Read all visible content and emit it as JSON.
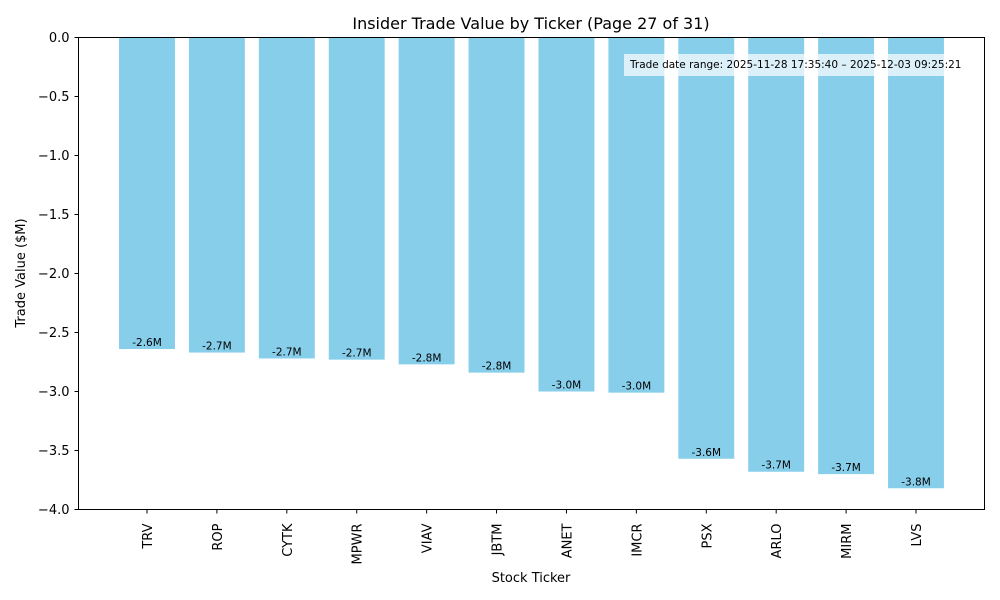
{
  "chart_data": {
    "type": "bar",
    "title": "Insider Trade Value by Ticker (Page 27 of 31)",
    "xlabel": "Stock Ticker",
    "ylabel": "Trade Value ($M)",
    "ylim": [
      -4.0,
      0.0
    ],
    "yticks": [
      0.0,
      -0.5,
      -1.0,
      -1.5,
      -2.0,
      -2.5,
      -3.0,
      -3.5,
      -4.0
    ],
    "ytick_labels": [
      "0.0",
      "−0.5",
      "−1.0",
      "−1.5",
      "−2.0",
      "−2.5",
      "−3.0",
      "−3.5",
      "−4.0"
    ],
    "grid": false,
    "categories": [
      "TRV",
      "ROP",
      "CYTK",
      "MPWR",
      "VIAV",
      "JBTM",
      "ANET",
      "IMCR",
      "PSX",
      "ARLO",
      "MIRM",
      "LVS"
    ],
    "values": [
      -2.64,
      -2.67,
      -2.72,
      -2.73,
      -2.77,
      -2.84,
      -3.0,
      -3.01,
      -3.57,
      -3.68,
      -3.7,
      -3.82
    ],
    "data_labels": [
      "-2.6M",
      "-2.7M",
      "-2.7M",
      "-2.7M",
      "-2.8M",
      "-2.8M",
      "-3.0M",
      "-3.0M",
      "-3.6M",
      "-3.7M",
      "-3.7M",
      "-3.8M"
    ],
    "bar_color": "#87CEEB",
    "annotation": "Trade date range: 2025-11-28 17:35:40 – 2025-12-03 09:25:21"
  }
}
